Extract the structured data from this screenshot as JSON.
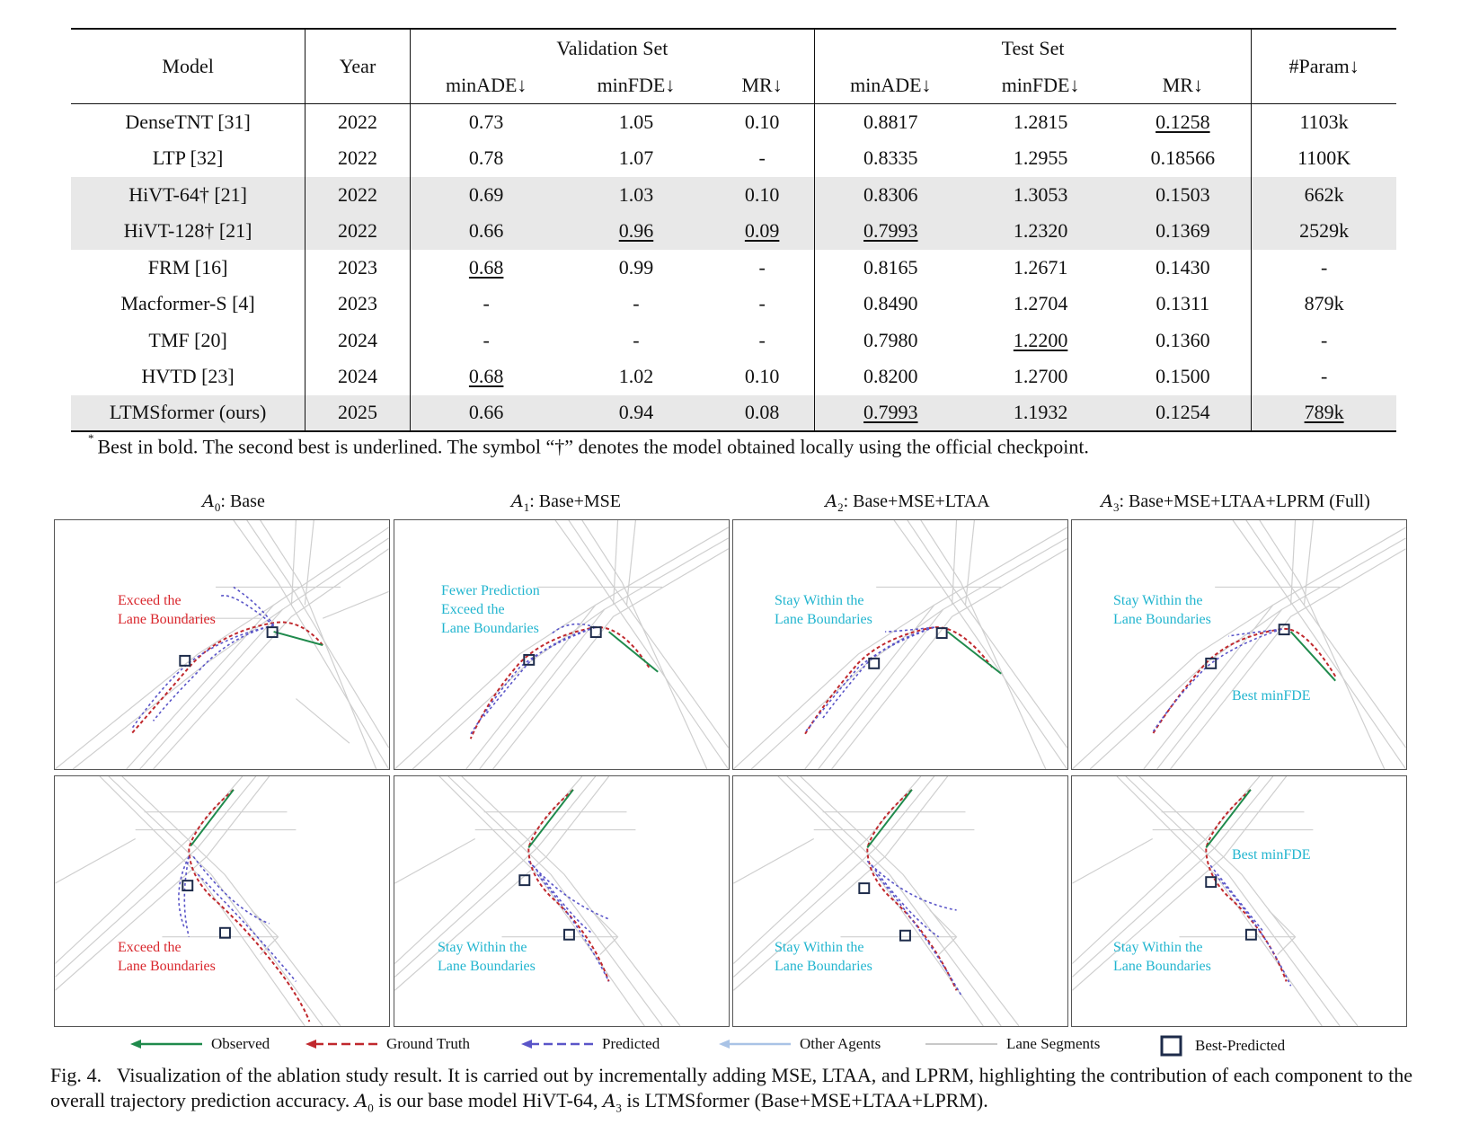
{
  "table": {
    "headers": {
      "model": "Model",
      "year": "Year",
      "validation": "Validation Set",
      "test": "Test Set",
      "param": "#Param↓",
      "minade": "minADE↓",
      "minfde": "minFDE↓",
      "mr": "MR↓"
    },
    "rows": [
      {
        "model": "DenseTNT [31]",
        "year": "2022",
        "v_minade": "0.73",
        "v_minfde": "1.05",
        "v_mr": "0.10",
        "t_minade": "0.8817",
        "t_minfde": "1.2815",
        "t_mr": "0.1258",
        "param": "1103k"
      },
      {
        "model": "LTP [32]",
        "year": "2022",
        "v_minade": "0.78",
        "v_minfde": "1.07",
        "v_mr": "-",
        "t_minade": "0.8335",
        "t_minfde": "1.2955",
        "t_mr": "0.18566",
        "param": "1100K"
      },
      {
        "model": "HiVT-64† [21]",
        "year": "2022",
        "v_minade": "0.69",
        "v_minfde": "1.03",
        "v_mr": "0.10",
        "t_minade": "0.8306",
        "t_minfde": "1.3053",
        "t_mr": "0.1503",
        "param": "662k"
      },
      {
        "model": "HiVT-128† [21]",
        "year": "2022",
        "v_minade": "0.66",
        "v_minfde": "0.96",
        "v_mr": "0.09",
        "t_minade": "0.7993",
        "t_minfde": "1.2320",
        "t_mr": "0.1369",
        "param": "2529k"
      },
      {
        "model": "FRM [16]",
        "year": "2023",
        "v_minade": "0.68",
        "v_minfde": "0.99",
        "v_mr": "-",
        "t_minade": "0.8165",
        "t_minfde": "1.2671",
        "t_mr": "0.1430",
        "param": "-"
      },
      {
        "model": "Macformer-S [4]",
        "year": "2023",
        "v_minade": "-",
        "v_minfde": "-",
        "v_mr": "-",
        "t_minade": "0.8490",
        "t_minfde": "1.2704",
        "t_mr": "0.1311",
        "param": "879k"
      },
      {
        "model": "TMF [20]",
        "year": "2024",
        "v_minade": "-",
        "v_minfde": "-",
        "v_mr": "-",
        "t_minade": "0.7980",
        "t_minfde": "1.2200",
        "t_mr": "0.1360",
        "param": "-"
      },
      {
        "model": "HVTD [23]",
        "year": "2024",
        "v_minade": "0.68",
        "v_minfde": "1.02",
        "v_mr": "0.10",
        "t_minade": "0.8200",
        "t_minfde": "1.2700",
        "t_mr": "0.1500",
        "param": "-"
      },
      {
        "model": "LTMSformer (ours)",
        "year": "2025",
        "v_minade": "0.66",
        "v_minfde": "0.94",
        "v_mr": "0.08",
        "t_minade": "0.7993",
        "t_minfde": "1.1932",
        "t_mr": "0.1254",
        "param": "789k"
      }
    ],
    "footnote": "Best in bold. The second best is underlined. The symbol “†” denotes the model obtained locally using the official checkpoint.",
    "footnote_mark": "*"
  },
  "figure": {
    "columns": [
      {
        "var": "A",
        "sub": "0",
        "title": ": Base"
      },
      {
        "var": "A",
        "sub": "1",
        "title": ": Base+MSE"
      },
      {
        "var": "A",
        "sub": "2",
        "title": ": Base+MSE+LTAA"
      },
      {
        "var": "A",
        "sub": "3",
        "title": ": Base+MSE+LTAA+LPRM (Full)"
      }
    ],
    "annotations": {
      "r1c1": [
        "Exceed the",
        "Lane Boundaries"
      ],
      "r1c2": [
        "Fewer Prediction",
        "Exceed the",
        "Lane Boundaries"
      ],
      "r1c3": [
        "Stay Within the",
        "Lane Boundaries"
      ],
      "r1c4a": [
        "Stay Within the",
        "Lane Boundaries"
      ],
      "r1c4b": [
        "Best minFDE"
      ],
      "r2c1": [
        "Exceed the",
        "Lane Boundaries"
      ],
      "r2c2": [
        "Stay Within the",
        "Lane Boundaries"
      ],
      "r2c3": [
        "Stay Within the",
        "Lane Boundaries"
      ],
      "r2c4a": [
        "Best minFDE"
      ],
      "r2c4b": [
        "Stay Within the",
        "Lane Boundaries"
      ]
    },
    "legend": {
      "observed": "Observed",
      "ground_truth": "Ground Truth",
      "predicted": "Predicted",
      "other_agents": "Other Agents",
      "lane_segments": "Lane Segments",
      "best_predicted": "Best-Predicted"
    },
    "colors": {
      "observed": "#1f8a4c",
      "ground_truth": "#c0282d",
      "predicted": "#5a55c8",
      "other_agents": "#a9c3e6",
      "lane": "#c8c8c8",
      "best_box": "#1d2b4a",
      "anno_red": "#d9262c",
      "anno_cyan": "#22b5cf"
    },
    "caption": {
      "label": "Fig. 4.",
      "text1": "Visualization of the ablation study result. It is carried out by incrementally adding MSE, LTAA, and LPRM, highlighting the contribution of each component to the overall trajectory prediction accuracy.",
      "var": "A",
      "sub0": "0",
      "text2": "is our base model HiVT-64,",
      "sub3": "3",
      "text3": "is LTMSformer (Base+MSE+LTAA+LPRM)."
    }
  }
}
